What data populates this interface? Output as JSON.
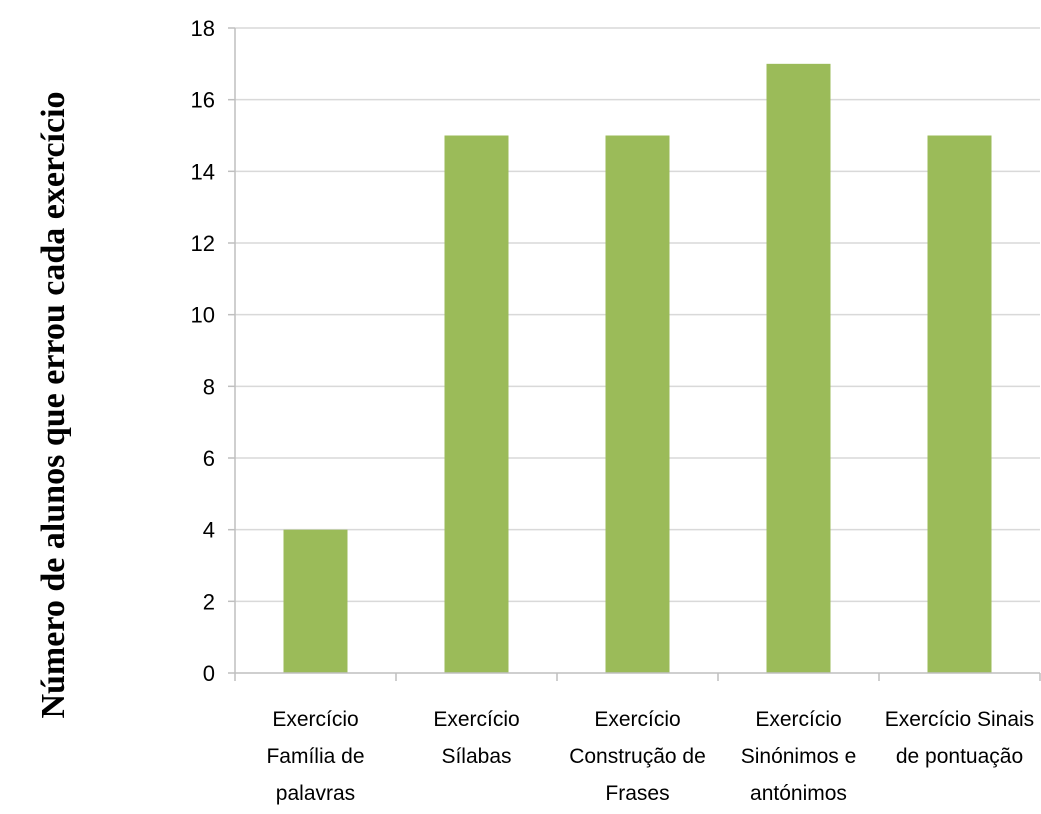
{
  "chart_data": {
    "type": "bar",
    "title": "",
    "xlabel": "",
    "ylabel": "Número de alunos que errou cada exercício",
    "categories": [
      [
        "Exercício",
        "Família de",
        "palavras"
      ],
      [
        "Exercício",
        "Sílabas"
      ],
      [
        "Exercício",
        "Construção de",
        "Frases"
      ],
      [
        "Exercício",
        "Sinónimos e",
        "antónimos"
      ],
      [
        "Exercício Sinais",
        "de pontuação"
      ]
    ],
    "values": [
      4,
      15,
      15,
      17,
      15
    ],
    "ylim": [
      0,
      18
    ],
    "yticks": [
      "0",
      "2",
      "4",
      "6",
      "8",
      "10",
      "12",
      "14",
      "16",
      "18"
    ],
    "grid": true,
    "legend": "none",
    "colors": {
      "bar": "#9BBB59",
      "grid": "#D9D9D9",
      "axis": "#BFBFBF"
    }
  }
}
